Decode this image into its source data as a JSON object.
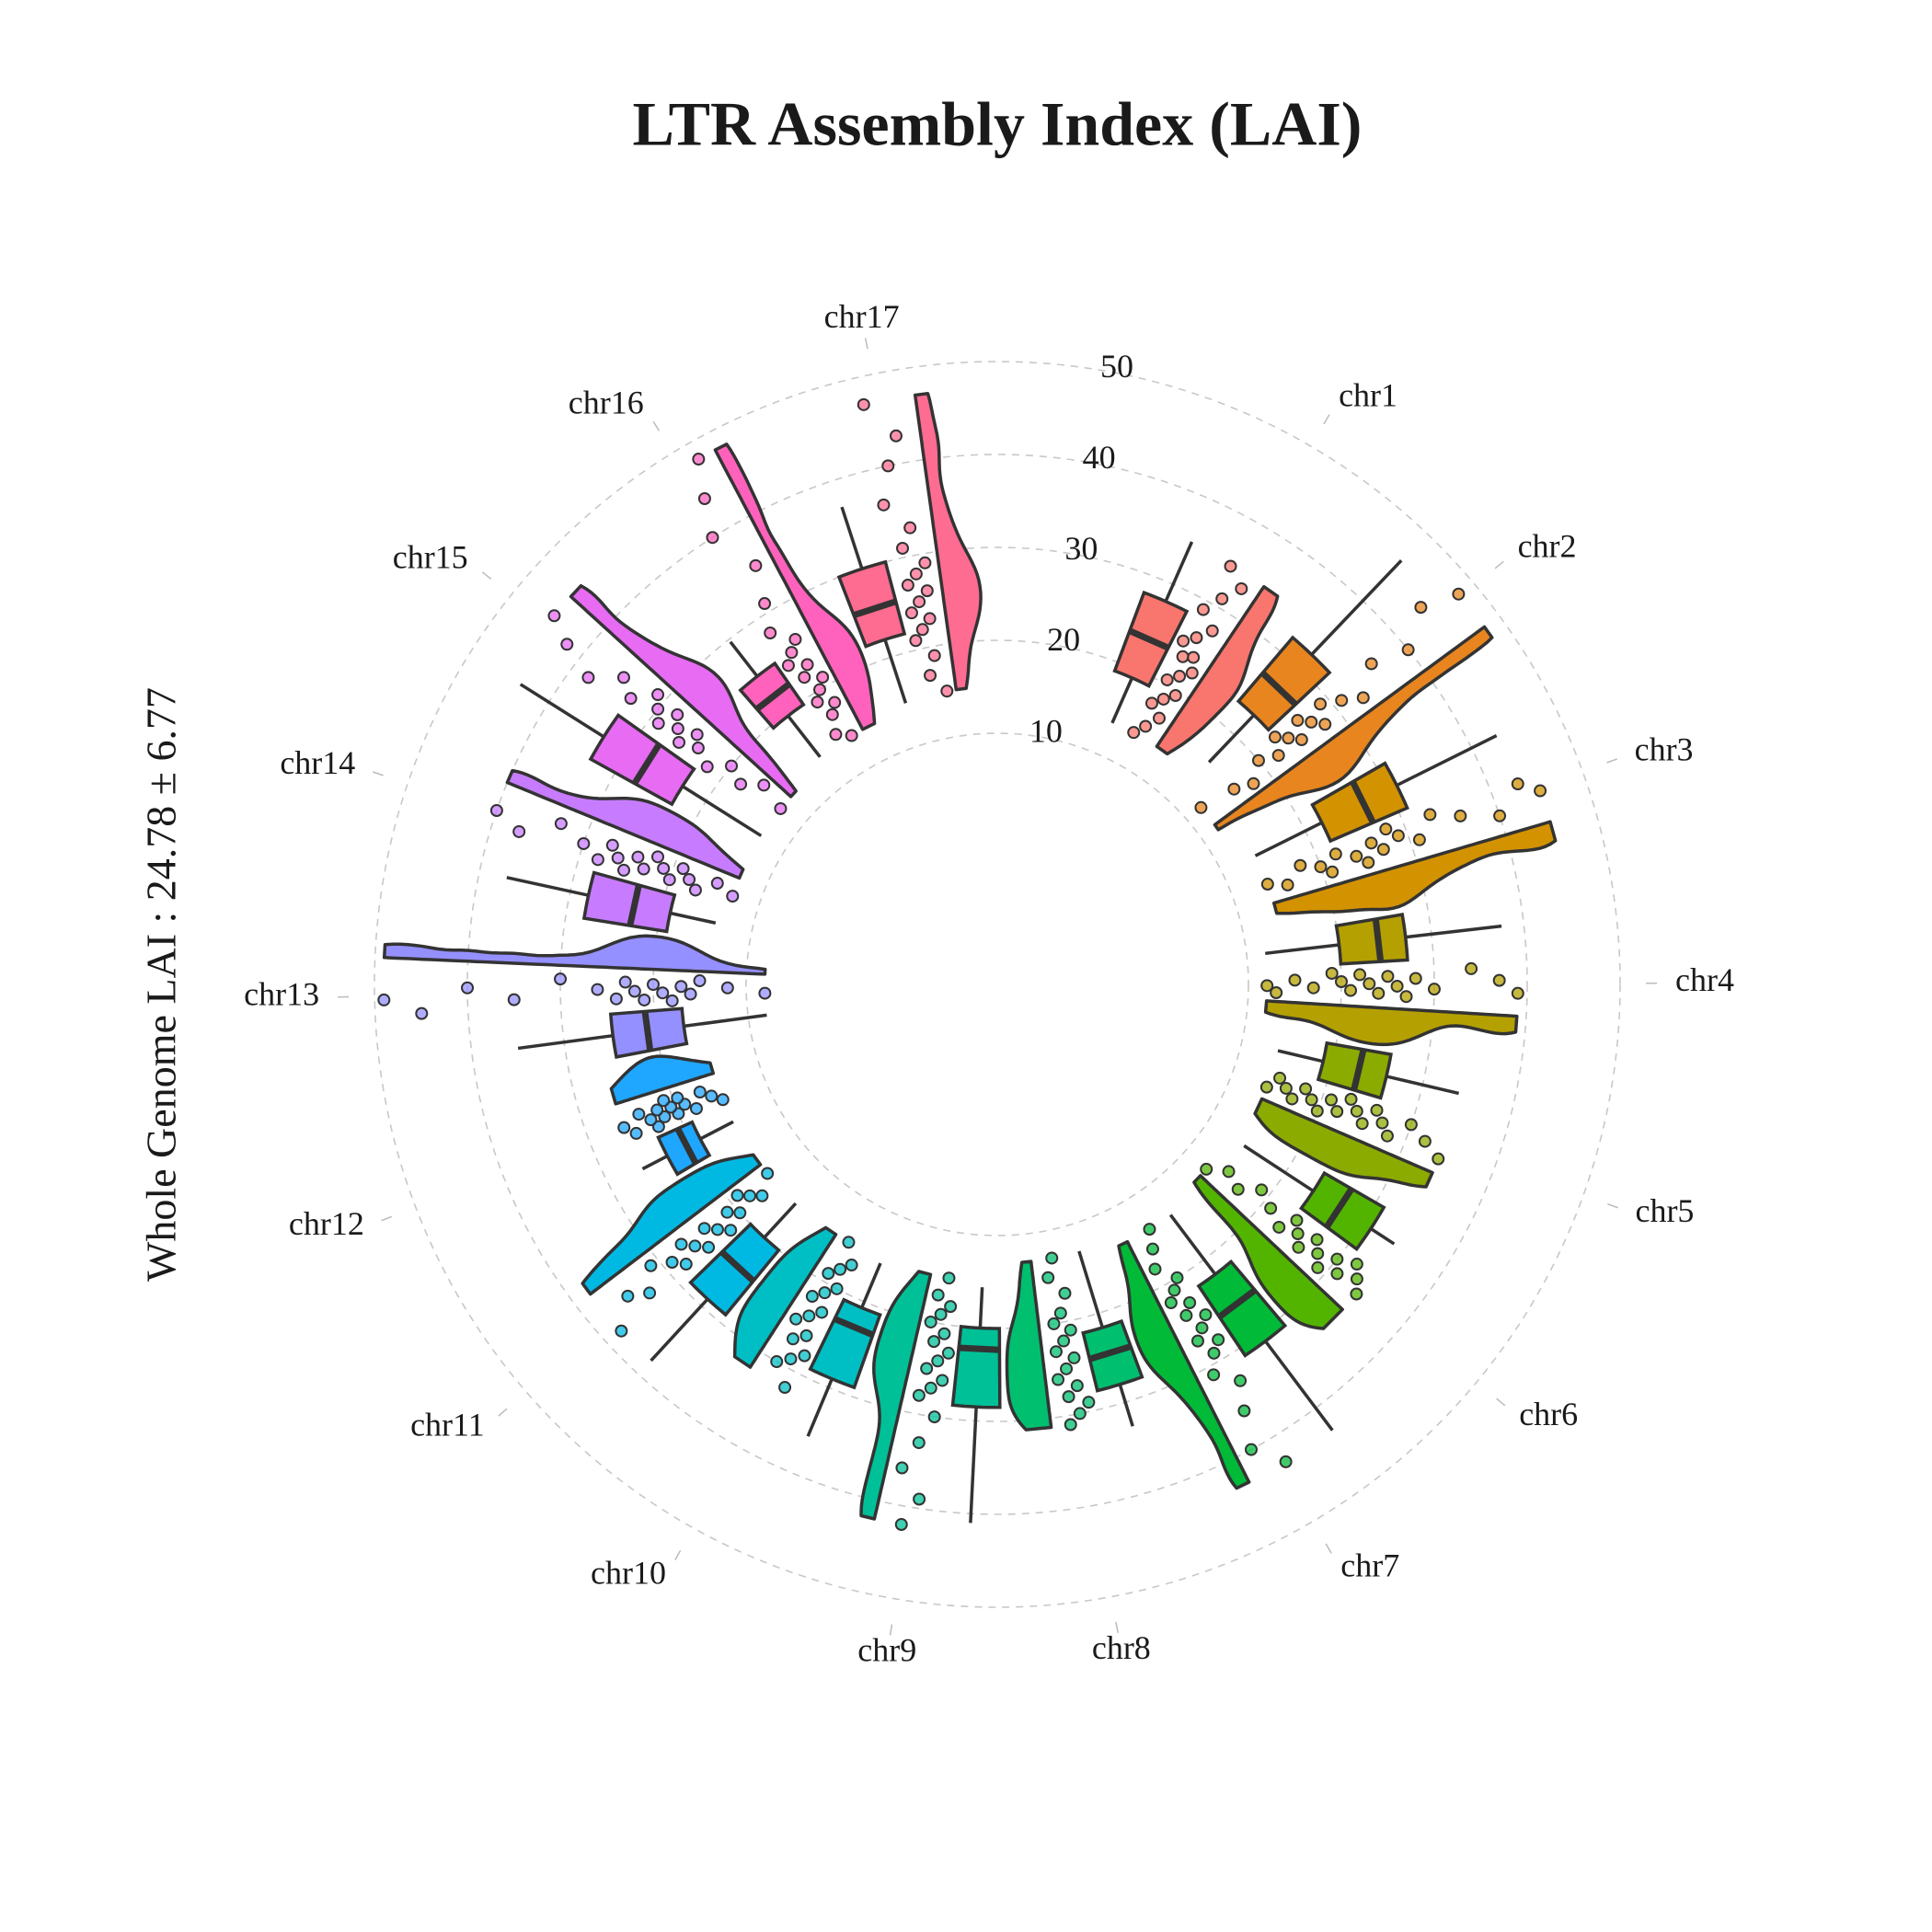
{
  "chart_data": {
    "type": "polar-raincloud",
    "title": "LTR Assembly Index (LAI)",
    "y_label": "Whole Genome LAI :  24.78 ± 6.77",
    "ylim": [
      0,
      50
    ],
    "yticks": [
      10,
      20,
      30,
      40,
      50
    ],
    "grid": true,
    "series": [
      {
        "name": "chr1",
        "color": "#F8766D",
        "min": 13.7,
        "q1": 19,
        "median": 23.6,
        "q3": 28,
        "max": 35,
        "points": [
          13.8,
          15,
          16.5,
          17.5,
          18.5,
          19.5,
          20.5,
          21.5,
          22.5,
          23.5,
          24,
          25,
          26,
          27.5,
          29,
          31,
          33,
          34.5
        ]
      },
      {
        "name": "chr2",
        "color": "#E8851E",
        "min": 16,
        "q1": 23,
        "median": 27,
        "q3": 32,
        "max": 46,
        "points": [
          12,
          16,
          18,
          20,
          22,
          23,
          24,
          25,
          26,
          27,
          28,
          29,
          31,
          33,
          36,
          40,
          44,
          48
        ]
      },
      {
        "name": "chr3",
        "color": "#D39200",
        "min": 14,
        "q1": 22,
        "median": 27,
        "q3": 31,
        "max": 43,
        "points": [
          14,
          16,
          18,
          20,
          21,
          22,
          24,
          25,
          26,
          27,
          28,
          29,
          31,
          33,
          36,
          40,
          43,
          45
        ]
      },
      {
        "name": "chr4",
        "color": "#B4A000",
        "min": 12,
        "q1": 20,
        "median": 24.3,
        "q3": 27.2,
        "max": 37.6,
        "points": [
          12,
          13,
          15,
          17,
          19,
          20,
          21,
          22,
          23,
          24,
          25,
          26,
          27,
          28,
          30,
          34,
          37,
          39
        ]
      },
      {
        "name": "chr5",
        "color": "#8CAB00",
        "min": 14,
        "q1": 19,
        "median": 23,
        "q3": 26,
        "max": 34,
        "points": [
          14,
          15,
          16,
          17,
          18,
          19,
          20,
          21,
          22,
          23,
          24,
          25,
          26,
          27,
          28,
          30,
          32,
          34
        ]
      },
      {
        "name": "chr6",
        "color": "#53B400",
        "min": 14.7,
        "q1": 23.6,
        "median": 27,
        "q3": 31,
        "max": 34,
        "points": [
          13,
          15,
          17,
          19,
          21,
          23,
          24,
          25,
          26,
          27,
          28,
          29,
          30,
          31,
          32,
          33,
          34
        ]
      },
      {
        "name": "chr7",
        "color": "#00BA38",
        "min": 14,
        "q1": 22,
        "median": 26,
        "q3": 31,
        "max": 43,
        "points": [
          14,
          16,
          18,
          20,
          21,
          22,
          23,
          24,
          25,
          26,
          27,
          28,
          29,
          31,
          33,
          36,
          40,
          43
        ]
      },
      {
        "name": "chr8",
        "color": "#00BF6F",
        "min": 13,
        "q1": 21.6,
        "median": 24.5,
        "q3": 28,
        "max": 32.7,
        "points": [
          13,
          15,
          17,
          19,
          20,
          21,
          22,
          23,
          24,
          25,
          26,
          27,
          28,
          29,
          30,
          31
        ]
      },
      {
        "name": "chr9",
        "color": "#00C098",
        "min": 15.6,
        "q1": 20,
        "median": 22.3,
        "q3": 28.5,
        "max": 41,
        "points": [
          15,
          17,
          18,
          19,
          20,
          21,
          22,
          23,
          24,
          25,
          26,
          27,
          28,
          30,
          33,
          36,
          39,
          42
        ]
      },
      {
        "name": "chr10",
        "color": "#00BFC4",
        "min": 15.5,
        "q1": 20.7,
        "median": 23,
        "q3": 29,
        "max": 35.7,
        "points": [
          15,
          17,
          18,
          19,
          20,
          21,
          22,
          23,
          24,
          25,
          26,
          27,
          28,
          29,
          30,
          32
        ]
      },
      {
        "name": "chr11",
        "color": "#00B9E3",
        "min": 15,
        "q1": 20,
        "median": 24.3,
        "q3": 29,
        "max": 38,
        "points": [
          15,
          17,
          18,
          19,
          20,
          21,
          22,
          23,
          24,
          25,
          26,
          27,
          28,
          29,
          31,
          33,
          35,
          38
        ]
      },
      {
        "name": "chr12",
        "color": "#1FA6FF",
        "min": 15,
        "q1": 19,
        "median": 20.7,
        "q3": 23,
        "max": 26,
        "points": [
          15,
          16,
          17,
          18,
          19,
          19.5,
          20,
          20.5,
          21,
          21.5,
          22,
          22.5,
          23,
          24,
          25,
          26
        ]
      },
      {
        "name": "chr13",
        "color": "#9590FF",
        "min": 8,
        "q1": 17,
        "median": 21,
        "q3": 24.7,
        "max": 35,
        "points": [
          8,
          12,
          15,
          16,
          17,
          18,
          19,
          20,
          21,
          22,
          23,
          24,
          26,
          30,
          35,
          40,
          45,
          49
        ]
      },
      {
        "name": "chr14",
        "color": "#C77CFF",
        "min": 14,
        "q1": 19,
        "median": 23,
        "q3": 28,
        "max": 37,
        "points": [
          13,
          15,
          17,
          18,
          19,
          20,
          21,
          22,
          23,
          24,
          25,
          26,
          27,
          28,
          30,
          33,
          37,
          40
        ]
      },
      {
        "name": "chr15",
        "color": "#E76BF3",
        "min": 13,
        "q1": 23,
        "median": 27.6,
        "q3": 33,
        "max": 43.6,
        "points": [
          13,
          16,
          18,
          20,
          22,
          24,
          25,
          26,
          27,
          28,
          29,
          30,
          31,
          33,
          35,
          38,
          42,
          45
        ]
      },
      {
        "name": "chr16",
        "color": "#FF62BC",
        "min": 14,
        "q1": 19.6,
        "median": 22.3,
        "q3": 25,
        "max": 29.7,
        "points": [
          14,
          15,
          17,
          18,
          19,
          20,
          21,
          22,
          23,
          24,
          25,
          26,
          28,
          31,
          35,
          40,
          44,
          48
        ]
      },
      {
        "name": "chr17",
        "color": "#FF6C91",
        "min": 14.8,
        "q1": 22,
        "median": 25.6,
        "q3": 30,
        "max": 37,
        "points": [
          15,
          17,
          19,
          21,
          22,
          23,
          24,
          25,
          26,
          27,
          28,
          29,
          31,
          33,
          36,
          40,
          43,
          47
        ]
      }
    ]
  }
}
